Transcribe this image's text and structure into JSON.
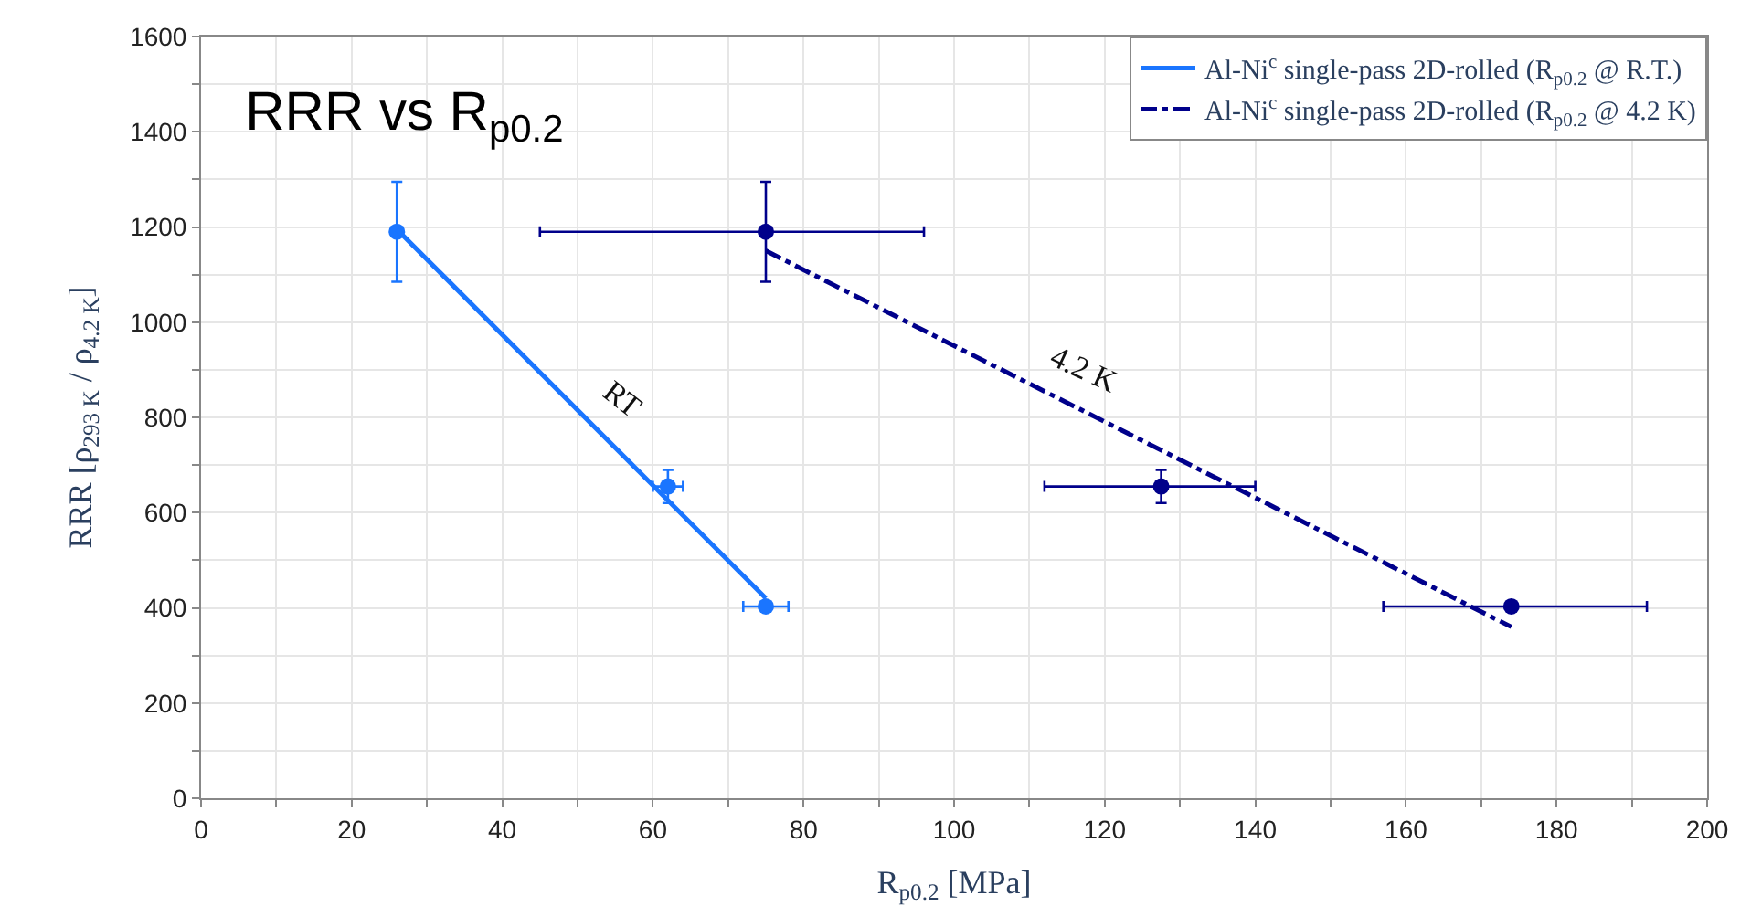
{
  "chart_data": {
    "type": "scatter",
    "title": "RRR vs R$_{p0.2}$",
    "xlabel": "R$_{p0.2}$ [MPa]",
    "ylabel": "RRR [ρ$_{293 K}$ / ρ$_{4.2 K}$]",
    "xlim": [
      0,
      200
    ],
    "ylim": [
      0,
      1600
    ],
    "xticks": [
      0,
      {
        "value": 10,
        "label": null
      },
      20,
      {
        "value": 30,
        "label": null
      },
      40,
      {
        "value": 50,
        "label": null
      },
      60,
      {
        "value": 70,
        "label": null
      },
      80,
      {
        "value": 90,
        "label": null
      },
      100,
      {
        "value": 110,
        "label": null
      },
      120,
      {
        "value": 130,
        "label": null
      },
      140,
      {
        "value": 150,
        "label": null
      },
      160,
      {
        "value": 170,
        "label": null
      },
      180,
      {
        "value": 190,
        "label": null
      },
      200
    ],
    "yticks": [
      0,
      {
        "value": 100,
        "label": null
      },
      200,
      {
        "value": 300,
        "label": null
      },
      400,
      {
        "value": 500,
        "label": null
      },
      600,
      {
        "value": 700,
        "label": null
      },
      800,
      {
        "value": 900,
        "label": null
      },
      1000,
      {
        "value": 1100,
        "label": null
      },
      1200,
      {
        "value": 1300,
        "label": null
      },
      1400,
      {
        "value": 1500,
        "label": null
      },
      1600
    ],
    "grid": true,
    "legend": "top right",
    "marker": "circle",
    "series": [
      {
        "color": "#1a75ff",
        "x": [
          26,
          62,
          75
        ],
        "values": [
          1190,
          655,
          403
        ],
        "errors": [
          105,
          35,
          null
        ],
        "xerrors": [
          null,
          2,
          3
        ]
      },
      {
        "type": "line",
        "name": "Al-Ni$^{c}$ single-pass 2D-rolled (R$_{p0.2}$ @ R.T.)",
        "color": "#1a75ff",
        "line_style": "solid",
        "marker": "none",
        "x": [
          26,
          75
        ],
        "values": [
          1195,
          420
        ]
      },
      {
        "color": "#00008b",
        "x": [
          75,
          127.5,
          174
        ],
        "values": [
          1190,
          655,
          403
        ],
        "errors": [
          105,
          35,
          null
        ],
        "xerrors": [
          [
            45,
            96
          ],
          [
            112,
            140
          ],
          [
            157,
            192
          ]
        ]
      },
      {
        "type": "line",
        "name": "Al-Ni$^{c}$ single-pass 2D-rolled (R$_{p0.2}$ @ 4.2 K)",
        "color": "#00008b",
        "line_style": "dashed",
        "marker": "none",
        "x": [
          75,
          174
        ],
        "values": [
          1150,
          360
        ]
      }
    ],
    "annotations": [
      {
        "text": "RT",
        "x": 52.5,
        "y": 776
      },
      {
        "text": "4.2 K",
        "x": 114,
        "y": 839
      }
    ]
  }
}
